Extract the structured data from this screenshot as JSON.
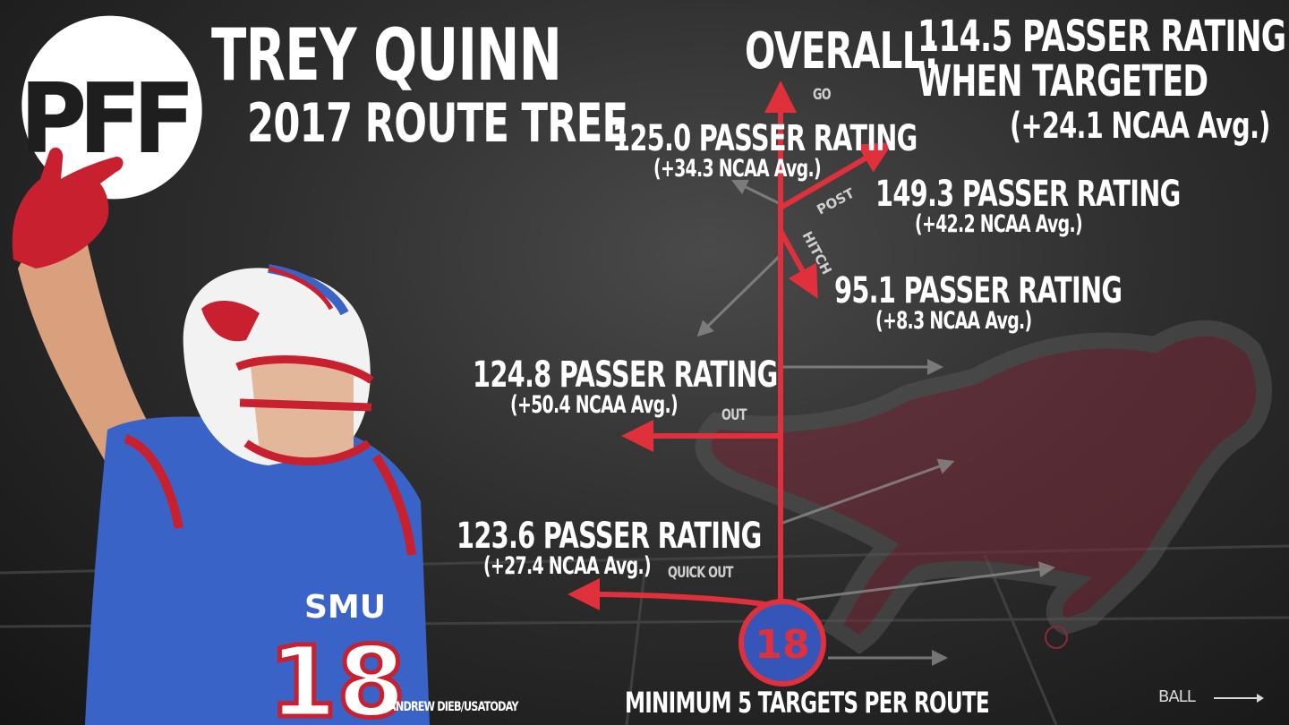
{
  "logo": {
    "text": "PFF"
  },
  "player": {
    "name": "TREY QUINN",
    "jersey_number": "18",
    "jersey_text": "SMU"
  },
  "subtitle": "2017 ROUTE TREE",
  "overall": {
    "label": "OVERALL:",
    "rating_line1": "114.5 PASSER RATING",
    "rating_line2": "WHEN TARGETED",
    "avg": "(+24.1 NCAA Avg.)"
  },
  "routes": [
    {
      "id": "go",
      "name": "GO",
      "rating": "125.0 PASSER RATING",
      "avg": "(+34.3 NCAA Avg.)"
    },
    {
      "id": "post",
      "name": "POST",
      "rating": "149.3 PASSER RATING",
      "avg": "(+42.2 NCAA Avg.)"
    },
    {
      "id": "hitch",
      "name": "HITCH",
      "rating": "95.1 PASSER RATING",
      "avg": "(+8.3 NCAA Avg.)"
    },
    {
      "id": "out",
      "name": "OUT",
      "rating": "124.8 PASSER RATING",
      "avg": "(+50.4 NCAA Avg.)"
    },
    {
      "id": "quick-out",
      "name": "QUICK OUT",
      "rating": "123.6 PASSER RATING",
      "avg": "(+27.4 NCAA Avg.)"
    }
  ],
  "footer": "MINIMUM 5 TARGETS PER ROUTE",
  "photo_credit": "ANDREW DIEB/USATODAY",
  "direction_label": "BALL",
  "colors": {
    "route_red": "#e0303c",
    "inactive_gray": "#8a8a8a",
    "jersey_blue": "#3a63c8",
    "circle_blue": "#3556b8"
  }
}
